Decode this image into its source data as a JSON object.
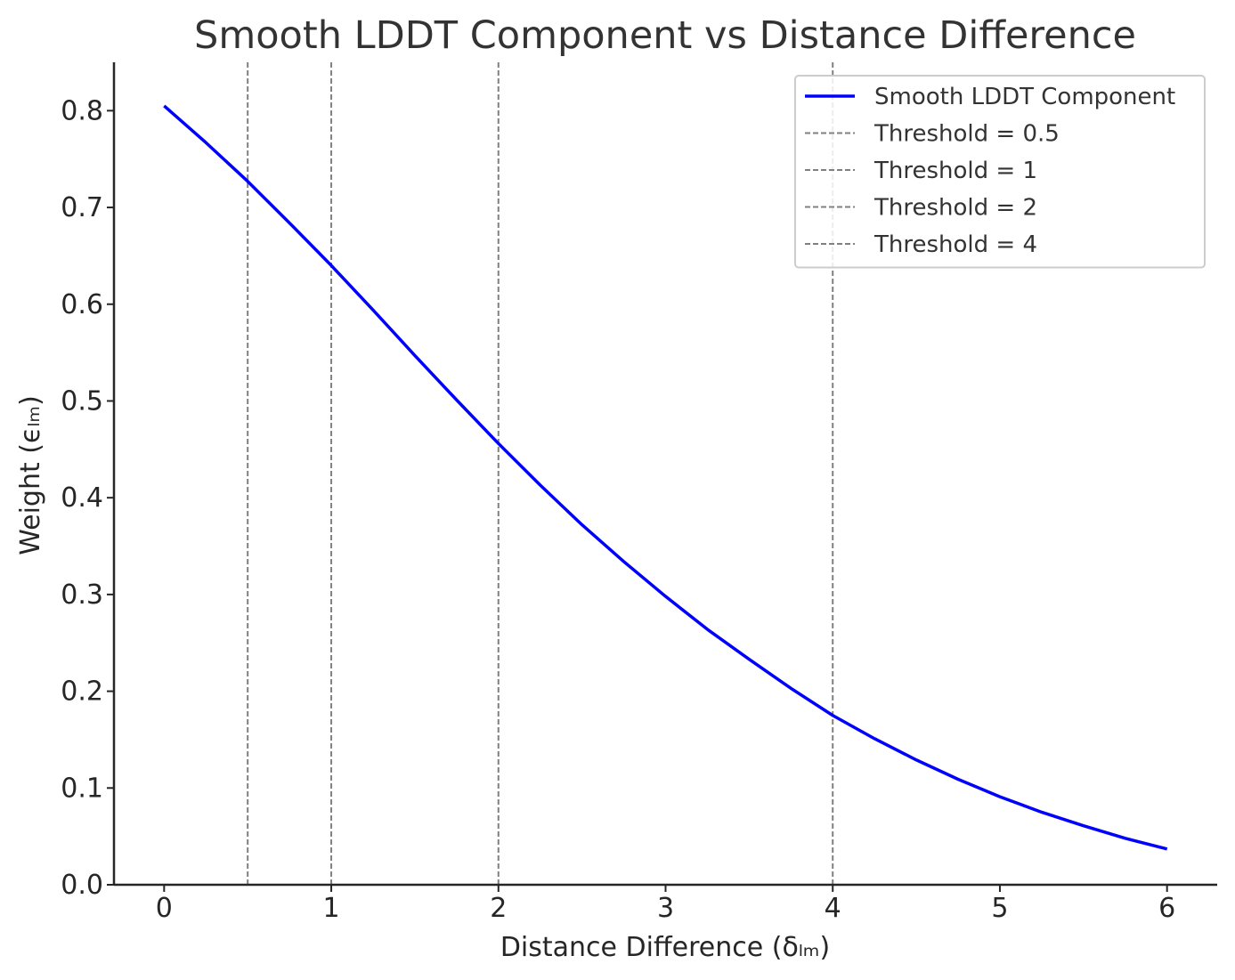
{
  "chart_data": {
    "type": "line",
    "title": "Smooth LDDT Component vs Distance Difference",
    "xlabel": "Distance Difference (δₗₘ)",
    "ylabel": "Weight (ϵₗₘ)",
    "xlim": [
      -0.3,
      6.3
    ],
    "ylim": [
      0.0,
      0.85
    ],
    "x_ticks": [
      0,
      1,
      2,
      3,
      4,
      5,
      6
    ],
    "y_ticks": [
      0.0,
      0.1,
      0.2,
      0.3,
      0.4,
      0.5,
      0.6,
      0.7,
      0.8
    ],
    "x_tick_labels": [
      "0",
      "1",
      "2",
      "3",
      "4",
      "5",
      "6"
    ],
    "y_tick_labels": [
      "0.0",
      "0.1",
      "0.2",
      "0.3",
      "0.4",
      "0.5",
      "0.6",
      "0.7",
      "0.8"
    ],
    "grid": false,
    "legend_position": "top-right",
    "series": [
      {
        "name": "Smooth LDDT Component",
        "color": "#0000ff",
        "x": [
          0,
          0.25,
          0.5,
          0.75,
          1.0,
          1.25,
          1.5,
          1.75,
          2.0,
          2.25,
          2.5,
          2.75,
          3.0,
          3.25,
          3.5,
          3.75,
          4.0,
          4.25,
          4.5,
          4.75,
          5.0,
          5.25,
          5.5,
          5.75,
          6.0
        ],
        "y": [
          0.805,
          0.767,
          0.727,
          0.684,
          0.64,
          0.594,
          0.547,
          0.501,
          0.456,
          0.413,
          0.372,
          0.334,
          0.298,
          0.264,
          0.233,
          0.203,
          0.175,
          0.151,
          0.129,
          0.109,
          0.091,
          0.075,
          0.061,
          0.048,
          0.037
        ]
      }
    ],
    "vlines": [
      {
        "name": "Threshold = 0.5",
        "x": 0.5,
        "color": "#808080",
        "style": "dashed"
      },
      {
        "name": "Threshold = 1",
        "x": 1,
        "color": "#808080",
        "style": "dashed"
      },
      {
        "name": "Threshold = 2",
        "x": 2,
        "color": "#808080",
        "style": "dashed"
      },
      {
        "name": "Threshold = 4",
        "x": 4,
        "color": "#808080",
        "style": "dashed"
      }
    ]
  }
}
